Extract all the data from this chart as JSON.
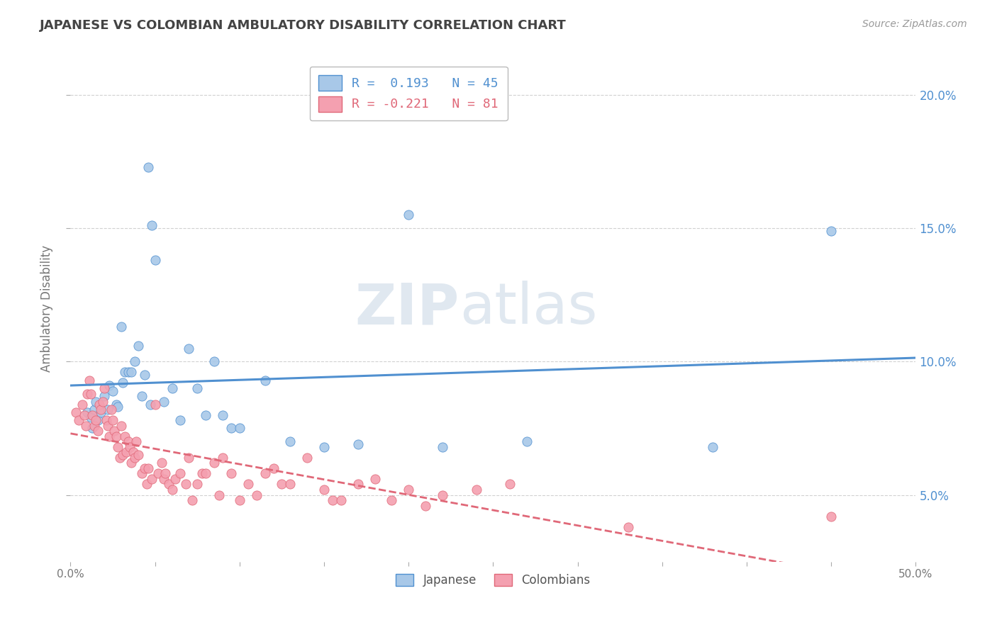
{
  "title": "JAPANESE VS COLOMBIAN AMBULATORY DISABILITY CORRELATION CHART",
  "source": "Source: ZipAtlas.com",
  "ylabel": "Ambulatory Disability",
  "legend_japanese": "Japanese",
  "legend_colombian": "Colombians",
  "r_japanese": 0.193,
  "n_japanese": 45,
  "r_colombian": -0.221,
  "n_colombian": 81,
  "watermark_zip": "ZIP",
  "watermark_atlas": "atlas",
  "japanese_color": "#a8c8e8",
  "colombian_color": "#f4a0b0",
  "japanese_line_color": "#5090d0",
  "colombian_line_color": "#e06878",
  "background_color": "#ffffff",
  "grid_color": "#cccccc",
  "japanese_points": [
    [
      0.01,
      0.081
    ],
    [
      0.012,
      0.079
    ],
    [
      0.013,
      0.075
    ],
    [
      0.014,
      0.082
    ],
    [
      0.015,
      0.085
    ],
    [
      0.016,
      0.078
    ],
    [
      0.018,
      0.081
    ],
    [
      0.02,
      0.087
    ],
    [
      0.022,
      0.082
    ],
    [
      0.023,
      0.091
    ],
    [
      0.025,
      0.089
    ],
    [
      0.027,
      0.084
    ],
    [
      0.028,
      0.083
    ],
    [
      0.03,
      0.113
    ],
    [
      0.031,
      0.092
    ],
    [
      0.032,
      0.096
    ],
    [
      0.034,
      0.096
    ],
    [
      0.036,
      0.096
    ],
    [
      0.038,
      0.1
    ],
    [
      0.04,
      0.106
    ],
    [
      0.042,
      0.087
    ],
    [
      0.044,
      0.095
    ],
    [
      0.046,
      0.173
    ],
    [
      0.047,
      0.084
    ],
    [
      0.048,
      0.151
    ],
    [
      0.05,
      0.138
    ],
    [
      0.055,
      0.085
    ],
    [
      0.06,
      0.09
    ],
    [
      0.065,
      0.078
    ],
    [
      0.07,
      0.105
    ],
    [
      0.075,
      0.09
    ],
    [
      0.08,
      0.08
    ],
    [
      0.085,
      0.1
    ],
    [
      0.09,
      0.08
    ],
    [
      0.095,
      0.075
    ],
    [
      0.1,
      0.075
    ],
    [
      0.115,
      0.093
    ],
    [
      0.13,
      0.07
    ],
    [
      0.15,
      0.068
    ],
    [
      0.17,
      0.069
    ],
    [
      0.2,
      0.155
    ],
    [
      0.22,
      0.068
    ],
    [
      0.27,
      0.07
    ],
    [
      0.38,
      0.068
    ],
    [
      0.45,
      0.149
    ]
  ],
  "colombian_points": [
    [
      0.003,
      0.081
    ],
    [
      0.005,
      0.078
    ],
    [
      0.007,
      0.084
    ],
    [
      0.008,
      0.08
    ],
    [
      0.009,
      0.076
    ],
    [
      0.01,
      0.088
    ],
    [
      0.011,
      0.093
    ],
    [
      0.012,
      0.088
    ],
    [
      0.013,
      0.08
    ],
    [
      0.014,
      0.076
    ],
    [
      0.015,
      0.078
    ],
    [
      0.016,
      0.074
    ],
    [
      0.017,
      0.084
    ],
    [
      0.018,
      0.082
    ],
    [
      0.019,
      0.085
    ],
    [
      0.02,
      0.09
    ],
    [
      0.021,
      0.078
    ],
    [
      0.022,
      0.076
    ],
    [
      0.023,
      0.072
    ],
    [
      0.024,
      0.082
    ],
    [
      0.025,
      0.078
    ],
    [
      0.026,
      0.074
    ],
    [
      0.027,
      0.072
    ],
    [
      0.028,
      0.068
    ],
    [
      0.029,
      0.064
    ],
    [
      0.03,
      0.076
    ],
    [
      0.031,
      0.065
    ],
    [
      0.032,
      0.072
    ],
    [
      0.033,
      0.066
    ],
    [
      0.034,
      0.07
    ],
    [
      0.035,
      0.068
    ],
    [
      0.036,
      0.062
    ],
    [
      0.037,
      0.066
    ],
    [
      0.038,
      0.064
    ],
    [
      0.039,
      0.07
    ],
    [
      0.04,
      0.065
    ],
    [
      0.042,
      0.058
    ],
    [
      0.044,
      0.06
    ],
    [
      0.045,
      0.054
    ],
    [
      0.046,
      0.06
    ],
    [
      0.048,
      0.056
    ],
    [
      0.05,
      0.084
    ],
    [
      0.052,
      0.058
    ],
    [
      0.054,
      0.062
    ],
    [
      0.055,
      0.056
    ],
    [
      0.056,
      0.058
    ],
    [
      0.058,
      0.054
    ],
    [
      0.06,
      0.052
    ],
    [
      0.062,
      0.056
    ],
    [
      0.065,
      0.058
    ],
    [
      0.068,
      0.054
    ],
    [
      0.07,
      0.064
    ],
    [
      0.072,
      0.048
    ],
    [
      0.075,
      0.054
    ],
    [
      0.078,
      0.058
    ],
    [
      0.08,
      0.058
    ],
    [
      0.085,
      0.062
    ],
    [
      0.088,
      0.05
    ],
    [
      0.09,
      0.064
    ],
    [
      0.095,
      0.058
    ],
    [
      0.1,
      0.048
    ],
    [
      0.105,
      0.054
    ],
    [
      0.11,
      0.05
    ],
    [
      0.115,
      0.058
    ],
    [
      0.12,
      0.06
    ],
    [
      0.125,
      0.054
    ],
    [
      0.13,
      0.054
    ],
    [
      0.14,
      0.064
    ],
    [
      0.15,
      0.052
    ],
    [
      0.155,
      0.048
    ],
    [
      0.16,
      0.048
    ],
    [
      0.17,
      0.054
    ],
    [
      0.18,
      0.056
    ],
    [
      0.19,
      0.048
    ],
    [
      0.2,
      0.052
    ],
    [
      0.21,
      0.046
    ],
    [
      0.22,
      0.05
    ],
    [
      0.24,
      0.052
    ],
    [
      0.26,
      0.054
    ],
    [
      0.33,
      0.038
    ],
    [
      0.45,
      0.042
    ]
  ],
  "xlim": [
    0.0,
    0.5
  ],
  "ylim": [
    0.025,
    0.215
  ],
  "yticks": [
    0.05,
    0.1,
    0.15,
    0.2
  ],
  "ytick_labels": [
    "5.0%",
    "10.0%",
    "15.0%",
    "20.0%"
  ]
}
